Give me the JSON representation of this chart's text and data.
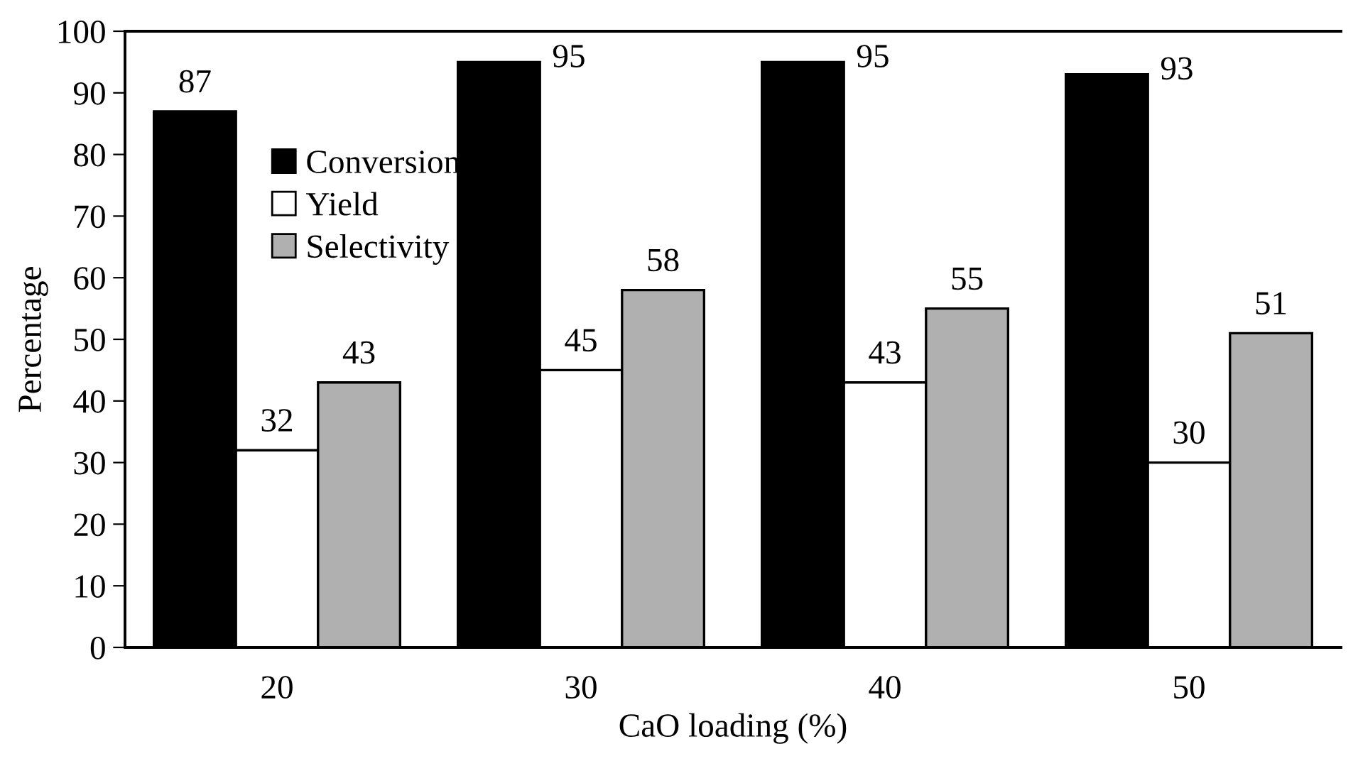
{
  "chart_data": {
    "type": "bar",
    "xlabel": "CaO loading (%)",
    "ylabel": "Percentage",
    "categories": [
      "20",
      "30",
      "40",
      "50"
    ],
    "series": [
      {
        "name": "Conversion",
        "color": "#000000",
        "values": [
          87,
          95,
          95,
          93
        ]
      },
      {
        "name": "Yield",
        "color": "#ffffff",
        "values": [
          32,
          45,
          43,
          30
        ]
      },
      {
        "name": "Selectivity",
        "color": "#b0b0b0",
        "values": [
          43,
          58,
          55,
          51
        ]
      }
    ],
    "ylim": [
      0,
      100
    ],
    "yticks": [
      0,
      10,
      20,
      30,
      40,
      50,
      60,
      70,
      80,
      90,
      100
    ],
    "data_labels": true,
    "grid": false,
    "legend": "top left"
  }
}
